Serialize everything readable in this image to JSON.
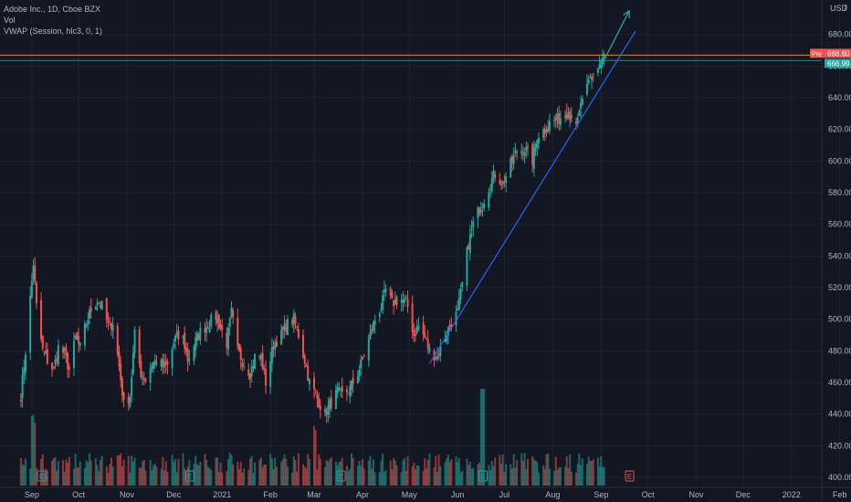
{
  "legend": {
    "symbol_line": "Adobe Inc., 1D, Cboe BZX",
    "volume_label": "Vol",
    "vwap_label": "VWAP (Session, hlc3, 0, 1)"
  },
  "price_axis": {
    "currency": "USD",
    "ticks": [
      "400.00",
      "420.00",
      "440.00",
      "460.00",
      "480.00",
      "500.00",
      "520.00",
      "540.00",
      "560.00",
      "580.00",
      "600.00",
      "620.00",
      "640.00",
      "660.00",
      "680.00"
    ],
    "top_partial": "7",
    "pre_badge": "Pre",
    "pre_price": "668.60",
    "last_price": "666.99"
  },
  "time_axis": {
    "labels": [
      "Sep",
      "Oct",
      "Nov",
      "Dec",
      "2021",
      "Feb",
      "Mar",
      "Apr",
      "May",
      "Jun",
      "Jul",
      "Aug",
      "Sep",
      "Oct",
      "Nov",
      "Dec",
      "2022",
      "Feb"
    ]
  },
  "earnings_marker": "E",
  "colors": {
    "background": "#131722",
    "grid": "#1f2330",
    "up": "#26a69a",
    "down": "#ef5350",
    "trendline": "#2962ff",
    "arrow": "#26a69a",
    "pre_line": "#f0b429",
    "last_line": "#26a69a"
  },
  "chart_data": {
    "type": "candlestick",
    "title": "Adobe Inc., 1D, Cboe BZX",
    "y_unit": "USD",
    "ylim": [
      397,
      700
    ],
    "x_range": [
      "2020-08-25",
      "2022-02-05"
    ],
    "month_ticks": [
      "2020-09-01",
      "2020-10-01",
      "2020-11-01",
      "2020-12-01",
      "2021-01-01",
      "2021-02-01",
      "2021-03-01",
      "2021-04-01",
      "2021-05-01",
      "2021-06-01",
      "2021-07-01",
      "2021-08-01",
      "2021-09-01",
      "2021-10-01",
      "2021-11-01",
      "2021-12-01",
      "2022-01-01",
      "2022-02-01"
    ],
    "close_path": [
      [
        "2020-08-25",
        452
      ],
      [
        "2020-08-28",
        480
      ],
      [
        "2020-09-02",
        535
      ],
      [
        "2020-09-04",
        508
      ],
      [
        "2020-09-08",
        480
      ],
      [
        "2020-09-11",
        474
      ],
      [
        "2020-09-15",
        468
      ],
      [
        "2020-09-18",
        482
      ],
      [
        "2020-09-22",
        478
      ],
      [
        "2020-09-25",
        468
      ],
      [
        "2020-09-29",
        488
      ],
      [
        "2020-10-02",
        482
      ],
      [
        "2020-10-06",
        498
      ],
      [
        "2020-10-09",
        506
      ],
      [
        "2020-10-13",
        512
      ],
      [
        "2020-10-16",
        508
      ],
      [
        "2020-10-20",
        496
      ],
      [
        "2020-10-23",
        498
      ],
      [
        "2020-10-27",
        470
      ],
      [
        "2020-10-30",
        446
      ],
      [
        "2020-11-03",
        452
      ],
      [
        "2020-11-06",
        490
      ],
      [
        "2020-11-10",
        466
      ],
      [
        "2020-11-13",
        462
      ],
      [
        "2020-11-17",
        472
      ],
      [
        "2020-11-20",
        474
      ],
      [
        "2020-11-24",
        470
      ],
      [
        "2020-11-27",
        470
      ],
      [
        "2020-12-02",
        488
      ],
      [
        "2020-12-07",
        488
      ],
      [
        "2020-12-10",
        474
      ],
      [
        "2020-12-15",
        486
      ],
      [
        "2020-12-18",
        492
      ],
      [
        "2020-12-22",
        496
      ],
      [
        "2020-12-28",
        502
      ],
      [
        "2021-01-04",
        485
      ],
      [
        "2021-01-07",
        504
      ],
      [
        "2021-01-11",
        480
      ],
      [
        "2021-01-14",
        474
      ],
      [
        "2021-01-19",
        466
      ],
      [
        "2021-01-22",
        476
      ],
      [
        "2021-01-26",
        476
      ],
      [
        "2021-01-29",
        460
      ],
      [
        "2021-02-03",
        484
      ],
      [
        "2021-02-08",
        490
      ],
      [
        "2021-02-11",
        496
      ],
      [
        "2021-02-16",
        500
      ],
      [
        "2021-02-19",
        490
      ],
      [
        "2021-02-23",
        474
      ],
      [
        "2021-02-26",
        460
      ],
      [
        "2021-03-03",
        450
      ],
      [
        "2021-03-08",
        440
      ],
      [
        "2021-03-11",
        446
      ],
      [
        "2021-03-16",
        454
      ],
      [
        "2021-03-19",
        452
      ],
      [
        "2021-03-24",
        456
      ],
      [
        "2021-03-29",
        466
      ],
      [
        "2021-04-01",
        474
      ],
      [
        "2021-04-06",
        490
      ],
      [
        "2021-04-09",
        500
      ],
      [
        "2021-04-13",
        508
      ],
      [
        "2021-04-16",
        518
      ],
      [
        "2021-04-20",
        510
      ],
      [
        "2021-04-23",
        512
      ],
      [
        "2021-04-27",
        512
      ],
      [
        "2021-04-30",
        508
      ],
      [
        "2021-05-04",
        490
      ],
      [
        "2021-05-07",
        496
      ],
      [
        "2021-05-11",
        488
      ],
      [
        "2021-05-14",
        480
      ],
      [
        "2021-05-19",
        476
      ],
      [
        "2021-05-24",
        490
      ],
      [
        "2021-05-27",
        496
      ],
      [
        "2021-06-01",
        504
      ],
      [
        "2021-06-04",
        522
      ],
      [
        "2021-06-08",
        548
      ],
      [
        "2021-06-11",
        560
      ],
      [
        "2021-06-15",
        570
      ],
      [
        "2021-06-18",
        576
      ],
      [
        "2021-06-22",
        586
      ],
      [
        "2021-06-25",
        592
      ],
      [
        "2021-06-30",
        586
      ],
      [
        "2021-07-06",
        600
      ],
      [
        "2021-07-09",
        606
      ],
      [
        "2021-07-14",
        608
      ],
      [
        "2021-07-19",
        600
      ],
      [
        "2021-07-22",
        616
      ],
      [
        "2021-07-27",
        620
      ],
      [
        "2021-07-30",
        624
      ],
      [
        "2021-08-04",
        626
      ],
      [
        "2021-08-09",
        630
      ],
      [
        "2021-08-12",
        632
      ],
      [
        "2021-08-17",
        624
      ],
      [
        "2021-08-20",
        640
      ],
      [
        "2021-08-25",
        650
      ],
      [
        "2021-08-30",
        660
      ],
      [
        "2021-09-03",
        667
      ]
    ],
    "volume": {
      "note": "daily volume bars, one per candle",
      "spikes": [
        [
          "2020-09-02",
          "high"
        ],
        [
          "2021-03-01",
          "high"
        ],
        [
          "2021-06-17",
          "highest"
        ]
      ]
    },
    "indicators": [
      "Vol",
      "VWAP (Session, hlc3, 0, 1)"
    ],
    "horizontal_lines": [
      {
        "label": "Pre",
        "value": 668.6
      },
      {
        "label": "Last",
        "value": 666.99
      }
    ],
    "trendline": {
      "from": [
        "2021-05-14",
        472
      ],
      "to": [
        "2021-09-23",
        682
      ]
    },
    "projection_arrow": {
      "from": [
        "2021-09-03",
        680
      ],
      "to": [
        "2021-09-19",
        696
      ]
    },
    "earnings_markers": [
      "2020-09-07",
      "2020-12-11",
      "2021-03-18",
      "2021-06-17",
      "2021-09-19"
    ]
  }
}
